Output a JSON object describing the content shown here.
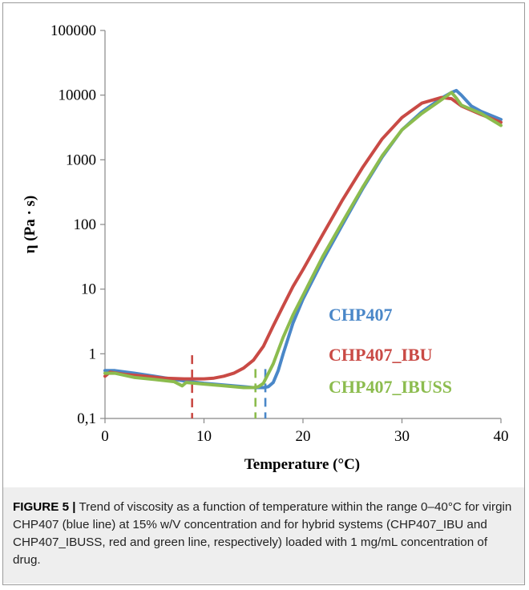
{
  "chart_data": {
    "type": "line",
    "title": "",
    "xlabel": "Temperature (°C)",
    "ylabel": "η (Pa · s)",
    "xlim": [
      0,
      40
    ],
    "ylim": [
      0.1,
      100000
    ],
    "yscale": "log",
    "grid": false,
    "legend_position": "right-lower-inside",
    "x_ticks": [
      "0",
      "10",
      "20",
      "30",
      "40"
    ],
    "y_ticks": [
      "0,1",
      "1",
      "10",
      "100",
      "1000",
      "10000",
      "100000"
    ],
    "series": [
      {
        "name": "CHP407",
        "color": "#4a87c8",
        "points": [
          [
            0,
            0.55
          ],
          [
            1,
            0.55
          ],
          [
            3,
            0.5
          ],
          [
            5,
            0.45
          ],
          [
            8,
            0.38
          ],
          [
            10,
            0.35
          ],
          [
            12,
            0.33
          ],
          [
            14,
            0.31
          ],
          [
            15,
            0.3
          ],
          [
            16,
            0.3
          ],
          [
            16.5,
            0.31
          ],
          [
            17,
            0.36
          ],
          [
            17.5,
            0.55
          ],
          [
            18,
            1.0
          ],
          [
            19,
            3.0
          ],
          [
            20,
            7.0
          ],
          [
            22,
            28
          ],
          [
            24,
            100
          ],
          [
            26,
            350
          ],
          [
            28,
            1100
          ],
          [
            30,
            2900
          ],
          [
            32,
            5500
          ],
          [
            34,
            9000
          ],
          [
            35,
            11000
          ],
          [
            35.5,
            11800
          ],
          [
            36,
            10000
          ],
          [
            37,
            6800
          ],
          [
            38,
            5600
          ],
          [
            40,
            4200
          ]
        ]
      },
      {
        "name": "CHP407_IBU",
        "color": "#c94a45",
        "points": [
          [
            0,
            0.45
          ],
          [
            0.5,
            0.52
          ],
          [
            2,
            0.48
          ],
          [
            4,
            0.45
          ],
          [
            6,
            0.42
          ],
          [
            8,
            0.41
          ],
          [
            10,
            0.41
          ],
          [
            11,
            0.42
          ],
          [
            12,
            0.45
          ],
          [
            13,
            0.5
          ],
          [
            14,
            0.6
          ],
          [
            15,
            0.8
          ],
          [
            16,
            1.3
          ],
          [
            17,
            2.7
          ],
          [
            18,
            5.5
          ],
          [
            19,
            11
          ],
          [
            20,
            20
          ],
          [
            22,
            70
          ],
          [
            24,
            240
          ],
          [
            26,
            750
          ],
          [
            28,
            2100
          ],
          [
            30,
            4500
          ],
          [
            32,
            7500
          ],
          [
            34,
            9200
          ],
          [
            35,
            8800
          ],
          [
            36,
            6800
          ],
          [
            38,
            5000
          ],
          [
            40,
            3800
          ]
        ]
      },
      {
        "name": "CHP407_IBUSS",
        "color": "#8cbc4e",
        "points": [
          [
            0,
            0.5
          ],
          [
            1,
            0.5
          ],
          [
            3,
            0.43
          ],
          [
            5,
            0.4
          ],
          [
            7,
            0.37
          ],
          [
            7.8,
            0.32
          ],
          [
            8.2,
            0.36
          ],
          [
            10,
            0.34
          ],
          [
            12,
            0.32
          ],
          [
            14,
            0.3
          ],
          [
            15,
            0.3
          ],
          [
            15.5,
            0.31
          ],
          [
            16,
            0.35
          ],
          [
            17,
            0.7
          ],
          [
            18,
            1.8
          ],
          [
            19,
            4.0
          ],
          [
            20,
            8.0
          ],
          [
            22,
            32
          ],
          [
            24,
            110
          ],
          [
            26,
            370
          ],
          [
            28,
            1150
          ],
          [
            30,
            2900
          ],
          [
            32,
            5200
          ],
          [
            34,
            8500
          ],
          [
            35,
            11000
          ],
          [
            35.5,
            9000
          ],
          [
            36,
            7000
          ],
          [
            38,
            5200
          ],
          [
            40,
            3400
          ]
        ]
      }
    ],
    "markers": [
      {
        "series": "CHP407_IBU",
        "x": 8.8,
        "color": "#c94a45"
      },
      {
        "series": "CHP407_IBUSS",
        "x": 15.2,
        "color": "#8cbc4e"
      },
      {
        "series": "CHP407",
        "x": 16.2,
        "color": "#4a87c8"
      }
    ]
  },
  "caption": {
    "label": "FIGURE 5 |",
    "text": " Trend of viscosity as a function of temperature within the range 0–40°C for virgin CHP407 (blue line) at 15% w/V concentration and for hybrid systems (CHP407_IBU and CHP407_IBUSS, red and green line, respectively) loaded with 1 mg/mL concentration of drug."
  }
}
